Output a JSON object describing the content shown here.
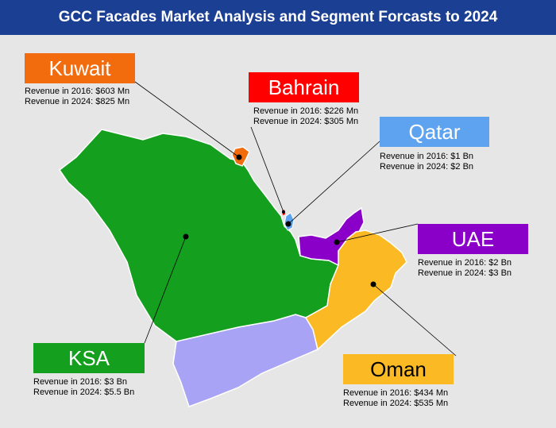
{
  "title": "GCC Facades Market Analysis and Segment Forcasts to 2024",
  "colors": {
    "header_bg": "#1b3f93",
    "background": "#e6e6e6",
    "kuwait": "#f26c0d",
    "bahrain": "#ff0000",
    "qatar": "#5ea3f0",
    "uae": "#8a00c8",
    "ksa": "#14a01e",
    "oman": "#fbb924",
    "yemen": "#a8a3f5"
  },
  "regions": {
    "kuwait": {
      "name": "Kuwait",
      "rev2016": "Revenue in 2016: $603 Mn",
      "rev2024": "Revenue in 2024: $825 Mn"
    },
    "bahrain": {
      "name": "Bahrain",
      "rev2016": "Revenue in 2016: $226 Mn",
      "rev2024": "Revenue in 2024: $305 Mn"
    },
    "qatar": {
      "name": "Qatar",
      "rev2016": "Revenue in 2016: $1 Bn",
      "rev2024": "Revenue in 2024: $2 Bn"
    },
    "uae": {
      "name": "UAE",
      "rev2016": "Revenue in 2016: $2 Bn",
      "rev2024": "Revenue in 2024: $3 Bn"
    },
    "ksa": {
      "name": "KSA",
      "rev2016": "Revenue in 2016: $3 Bn",
      "rev2024": "Revenue in 2024: $5.5 Bn"
    },
    "oman": {
      "name": "Oman",
      "rev2016": "Revenue in 2016: $434 Mn",
      "rev2024": "Revenue in 2024: $535 Mn"
    }
  }
}
